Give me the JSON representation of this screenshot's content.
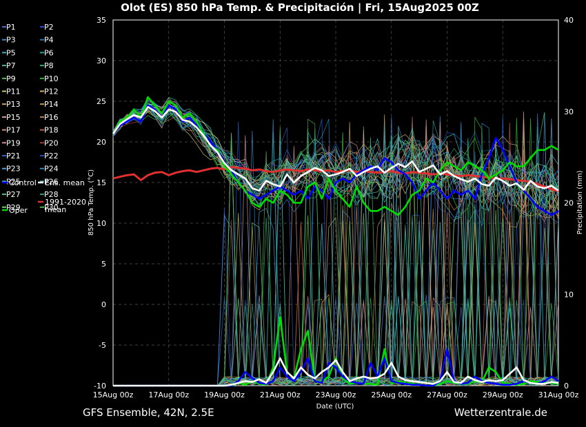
{
  "chart_data": {
    "type": "line",
    "title": "Olot  (ES)  850 hPa Temp. & Precipitación | Fri, 15Aug2025 00Z",
    "footer_left": "GFS Ensemble, 42N, 2.5E",
    "footer_right": "Wetterzentrale.de",
    "xlabel": "Date (UTC)",
    "ylabel_left": "850 hPa Temp. (°C)",
    "ylabel_right": "Precipitation (mm)",
    "ylim_left": [
      -10,
      35
    ],
    "ylim_right": [
      0,
      40
    ],
    "xlim_hours": [
      0,
      384
    ],
    "x_step_hours": 6,
    "yticks_left": [
      "-10",
      "-5",
      "0",
      "5",
      "10",
      "15",
      "20",
      "25",
      "30",
      "35"
    ],
    "yticks_right": [
      "0",
      "10",
      "20",
      "30",
      "40"
    ],
    "xticks": [
      "15Aug 00z",
      "17Aug 00z",
      "19Aug 00z",
      "21Aug 00z",
      "23Aug 00z",
      "25Aug 00z",
      "27Aug 00z",
      "29Aug 00z",
      "31Aug 00z"
    ],
    "legend": [
      {
        "label": "P1",
        "color": "#4f6bd6"
      },
      {
        "label": "P2",
        "color": "#2d50c8"
      },
      {
        "label": "P3",
        "color": "#3a8fd0"
      },
      {
        "label": "P4",
        "color": "#2f78c0"
      },
      {
        "label": "P5",
        "color": "#38b2c8"
      },
      {
        "label": "P6",
        "color": "#2aa8a0"
      },
      {
        "label": "P7",
        "color": "#3fbf9a"
      },
      {
        "label": "P8",
        "color": "#34b07a"
      },
      {
        "label": "P9",
        "color": "#5fc05a"
      },
      {
        "label": "P10",
        "color": "#2fbf3a"
      },
      {
        "label": "P11",
        "color": "#c8c86a"
      },
      {
        "label": "P12",
        "color": "#d8b060"
      },
      {
        "label": "P13",
        "color": "#d8a850"
      },
      {
        "label": "P14",
        "color": "#c89a40"
      },
      {
        "label": "P15",
        "color": "#e0a0a0"
      },
      {
        "label": "P16",
        "color": "#c08060"
      },
      {
        "label": "P17",
        "color": "#d09080"
      },
      {
        "label": "P18",
        "color": "#c06050"
      },
      {
        "label": "P19",
        "color": "#d88890"
      },
      {
        "label": "P20",
        "color": "#a84030"
      },
      {
        "label": "P21",
        "color": "#3060d0"
      },
      {
        "label": "P22",
        "color": "#2050b0"
      },
      {
        "label": "P23",
        "color": "#4aa0e0"
      },
      {
        "label": "P24",
        "color": "#3090c0"
      },
      {
        "label": "P25",
        "color": "#40c0d0"
      },
      {
        "label": "P26",
        "color": "#30b0b0"
      },
      {
        "label": "P27",
        "color": "#50c090"
      },
      {
        "label": "P28",
        "color": "#30a070"
      },
      {
        "label": "P29",
        "color": "#70d060"
      },
      {
        "label": "P30",
        "color": "#40c040"
      },
      {
        "label": "Control",
        "color": "#0000ff"
      },
      {
        "label": "Ens. mean",
        "color": "#ffffff"
      },
      {
        "label": "1991-2020 mean",
        "color": "#e03030"
      },
      {
        "label": "Oper",
        "color": "#00dd00"
      }
    ],
    "series": [
      {
        "name": "Oper",
        "color": "#00dd00",
        "axis": "temp",
        "values": [
          21.0,
          22.5,
          23.0,
          24.0,
          23.0,
          25.5,
          24.5,
          23.5,
          25.0,
          24.5,
          23.0,
          23.5,
          22.5,
          21.0,
          19.5,
          19.0,
          17.0,
          16.0,
          15.0,
          14.0,
          12.5,
          12.0,
          13.0,
          12.5,
          14.0,
          13.5,
          12.5,
          12.5,
          14.5,
          15.0,
          13.0,
          15.5,
          14.0,
          13.0,
          12.0,
          14.5,
          12.5,
          11.5,
          11.5,
          12.0,
          11.5,
          11.0,
          12.0,
          13.5,
          14.0,
          15.5,
          15.0,
          16.5,
          17.5,
          17.0,
          16.5,
          17.5,
          17.0,
          16.5,
          15.5,
          16.0,
          16.5,
          17.5,
          17.0,
          17.0,
          18.0,
          19.0,
          19.0,
          19.5,
          19.0
        ]
      },
      {
        "name": "Control",
        "color": "#0000ff",
        "axis": "temp",
        "values": [
          21.0,
          22.0,
          22.5,
          23.0,
          22.5,
          24.5,
          24.0,
          23.0,
          24.5,
          24.0,
          22.5,
          23.0,
          22.0,
          21.0,
          20.0,
          19.0,
          17.5,
          16.5,
          15.0,
          14.0,
          13.5,
          13.0,
          13.5,
          14.0,
          14.5,
          14.0,
          13.5,
          14.0,
          13.0,
          14.5,
          14.0,
          13.0,
          15.0,
          15.5,
          15.0,
          16.0,
          16.5,
          17.0,
          16.5,
          18.0,
          17.5,
          16.5,
          16.0,
          15.0,
          13.0,
          14.0,
          15.0,
          14.0,
          13.0,
          14.0,
          13.5,
          14.0,
          13.0,
          16.0,
          18.0,
          20.5,
          19.0,
          17.0,
          15.0,
          14.0,
          13.0,
          12.0,
          11.5,
          11.0,
          11.5
        ]
      },
      {
        "name": "Ens. mean",
        "color": "#ffffff",
        "axis": "temp",
        "values": [
          21.0,
          22.2,
          22.8,
          23.3,
          23.0,
          24.3,
          23.8,
          23.0,
          24.0,
          23.7,
          22.7,
          22.5,
          21.8,
          20.8,
          19.6,
          18.7,
          17.4,
          16.5,
          16.0,
          15.5,
          14.3,
          14.0,
          15.2,
          14.8,
          14.5,
          16.0,
          15.0,
          15.8,
          16.3,
          16.8,
          16.5,
          15.8,
          16.0,
          16.3,
          16.7,
          15.8,
          16.3,
          16.7,
          17.0,
          16.2,
          16.8,
          17.3,
          16.9,
          17.6,
          16.3,
          16.7,
          17.1,
          16.0,
          16.4,
          15.8,
          15.4,
          15.1,
          15.5,
          14.8,
          14.6,
          15.6,
          15.2,
          14.6,
          14.9,
          14.1,
          15.2,
          14.5,
          14.3,
          14.6,
          14.0
        ]
      },
      {
        "name": "1991-2020 mean",
        "color": "#e03030",
        "axis": "temp",
        "values": [
          15.5,
          15.7,
          15.9,
          16.0,
          15.3,
          15.9,
          16.2,
          16.3,
          15.9,
          16.2,
          16.4,
          16.5,
          16.3,
          16.5,
          16.7,
          16.8,
          16.6,
          16.9,
          16.8,
          16.7,
          16.5,
          16.6,
          16.4,
          16.3,
          16.5,
          16.6,
          16.5,
          16.4,
          16.6,
          16.5,
          16.4,
          16.5,
          16.3,
          16.4,
          16.5,
          16.3,
          16.4,
          16.3,
          16.2,
          16.3,
          16.4,
          16.2,
          16.1,
          16.3,
          16.2,
          16.1,
          16.0,
          16.1,
          16.0,
          15.9,
          15.8,
          15.9,
          15.8,
          15.7,
          15.6,
          15.5,
          15.5,
          15.4,
          15.3,
          15.2,
          15.1,
          14.8,
          14.5,
          14.2,
          13.9
        ]
      },
      {
        "name": "Oper precip",
        "color": "#00dd00",
        "axis": "precip",
        "values": [
          0,
          0,
          0,
          0,
          0,
          0,
          0,
          0,
          0,
          0,
          0,
          0,
          0,
          0,
          0,
          0,
          0,
          0,
          0.3,
          0.1,
          0.5,
          0.2,
          0.1,
          2.0,
          7.5,
          1.5,
          0.8,
          4.0,
          6.0,
          0.5,
          0.4,
          1.0,
          3.0,
          0.8,
          0.2,
          0.3,
          0.2,
          0.2,
          0.1,
          4.0,
          0.2,
          0.5,
          0.3,
          0.2,
          0.1,
          0,
          0,
          0.2,
          0.5,
          0.3,
          0.2,
          0.2,
          0.5,
          0.4,
          2.0,
          1.5,
          0.3,
          0.2,
          0.1,
          0.2,
          0.5,
          0.4,
          0.3,
          0.3,
          0.2
        ]
      },
      {
        "name": "Control precip",
        "color": "#0000ff",
        "axis": "precip",
        "values": [
          0,
          0,
          0,
          0,
          0,
          0,
          0,
          0,
          0,
          0,
          0,
          0,
          0,
          0,
          0,
          0,
          0,
          0,
          0.5,
          1.5,
          0.8,
          0.3,
          0.2,
          0.5,
          2.0,
          1.0,
          0.5,
          1.5,
          3.0,
          0.5,
          0.3,
          2.5,
          2.0,
          1.0,
          0.5,
          0.3,
          0.2,
          2.5,
          1.0,
          3.0,
          0.5,
          0.3,
          0.2,
          0.1,
          0.1,
          0,
          0,
          0.5,
          4.0,
          0.5,
          0.2,
          0.3,
          1.0,
          0.5,
          0.3,
          0.2,
          0.1,
          0.1,
          0.2,
          0.5,
          0.3,
          0.2,
          0.5,
          1.0,
          0.5
        ]
      },
      {
        "name": "Ens. mean precip",
        "color": "#ffffff",
        "axis": "precip",
        "values": [
          0,
          0,
          0,
          0,
          0,
          0,
          0,
          0,
          0,
          0,
          0,
          0,
          0,
          0,
          0,
          0,
          0,
          0.1,
          0.3,
          0.5,
          0.4,
          0.7,
          0.3,
          1.5,
          3.0,
          1.5,
          0.8,
          2.0,
          1.2,
          0.8,
          1.5,
          2.0,
          2.8,
          1.5,
          0.5,
          0.8,
          1.0,
          0.8,
          0.9,
          1.3,
          2.5,
          1.0,
          0.6,
          0.5,
          0.4,
          0.3,
          0.2,
          0.5,
          1.5,
          0.4,
          0.3,
          1.0,
          0.6,
          0.4,
          0.6,
          0.5,
          0.6,
          1.3,
          2.0,
          0.6,
          0.3,
          0.2,
          0.2,
          0.4,
          0.3
        ]
      }
    ]
  }
}
